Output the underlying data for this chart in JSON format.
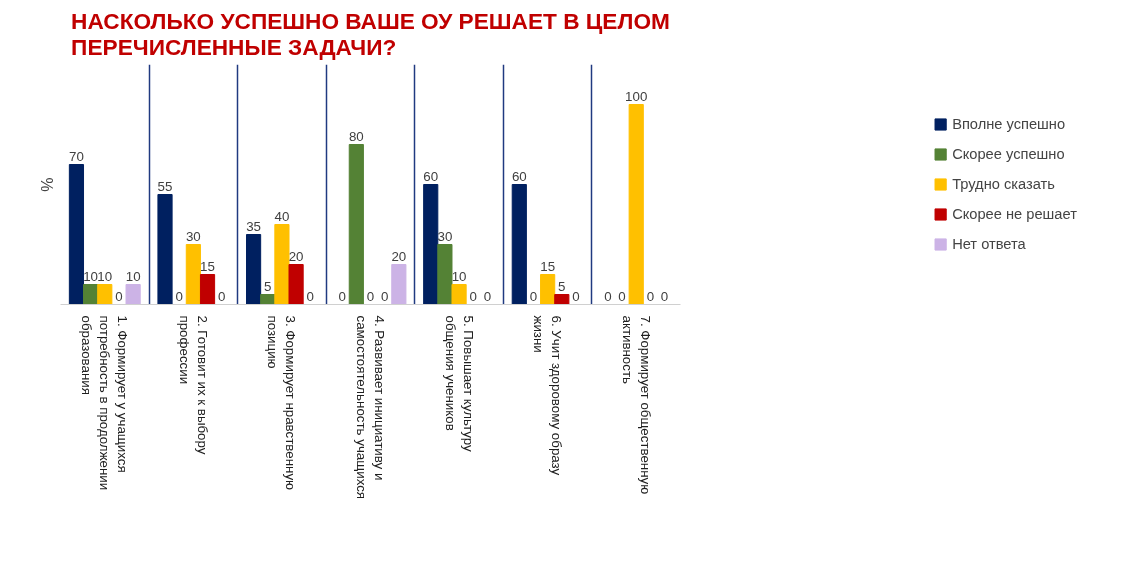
{
  "chart_data": {
    "type": "bar",
    "title": "НАСКОЛЬКО УСПЕШНО ВАШЕ ОУ РЕШАЕТ В ЦЕЛОМ ПЕРЕЧИСЛЕННЫЕ ЗАДАЧИ?",
    "ylabel": "%",
    "categories": [
      "1. Формирует у учащихся потребность в продолжении образования",
      "2. Готовит их к выбору профессии",
      "3. Формирует нравственную позицию",
      "4. Развивает инициативу и самостоятельность учащихся",
      "5. Повышает культуру общения учеников",
      "6. Учит здоровому образу жизни",
      "7. Формирует общественную активность"
    ],
    "series": [
      {
        "name": "Вполне успешно",
        "color": "#002060",
        "values": [
          70,
          55,
          35,
          0,
          60,
          60,
          0
        ]
      },
      {
        "name": "Скорее успешно",
        "color": "#548235",
        "values": [
          10,
          0,
          5,
          80,
          30,
          0,
          0
        ]
      },
      {
        "name": "Трудно сказать",
        "color": "#ffc000",
        "values": [
          10,
          30,
          40,
          0,
          10,
          15,
          100
        ]
      },
      {
        "name": "Скорее не решает",
        "color": "#c00000",
        "values": [
          0,
          15,
          20,
          0,
          0,
          5,
          0
        ]
      },
      {
        "name": "Нет ответа",
        "color": "#ccb3e6",
        "values": [
          10,
          0,
          0,
          20,
          0,
          0,
          0
        ]
      }
    ],
    "ylim": [
      0,
      120
    ],
    "tick_labels": "x",
    "data_labels": true,
    "grid": "x",
    "legend": "right"
  }
}
